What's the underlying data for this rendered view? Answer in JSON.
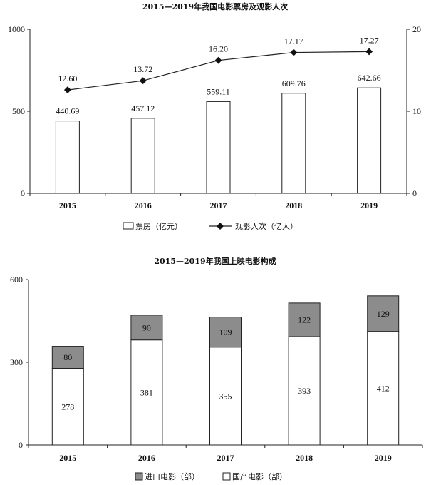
{
  "chart_data": [
    {
      "type": "bar",
      "title": "2015—2019年我国电影票房及观影人次",
      "categories": [
        "2015",
        "2016",
        "2017",
        "2018",
        "2019"
      ],
      "ylim": [
        0,
        1000
      ],
      "y2lim": [
        0,
        20
      ],
      "yticks": [
        "0",
        "500",
        "1000"
      ],
      "y2ticks": [
        "0",
        "10",
        "20"
      ],
      "series": [
        {
          "name": "票房（亿元）",
          "type": "bar",
          "axis": "left",
          "values": [
            440.69,
            457.12,
            559.11,
            609.76,
            642.66
          ],
          "labels": [
            "440.69",
            "457.12",
            "559.11",
            "609.76",
            "642.66"
          ]
        },
        {
          "name": "观影人次（亿人）",
          "type": "line",
          "axis": "right",
          "values": [
            12.6,
            13.72,
            16.2,
            17.17,
            17.27
          ],
          "labels": [
            "12.60",
            "13.72",
            "16.20",
            "17.17",
            "17.27"
          ]
        }
      ],
      "legend": "bottom"
    },
    {
      "type": "bar",
      "stacked": true,
      "title": "2015—2019年我国上映电影构成",
      "categories": [
        "2015",
        "2016",
        "2017",
        "2018",
        "2019"
      ],
      "ylim": [
        0,
        600
      ],
      "yticks": [
        "0",
        "300",
        "600"
      ],
      "series": [
        {
          "name": "国产电影（部）",
          "color": "#ffffff",
          "values": [
            278,
            381,
            355,
            393,
            412
          ],
          "labels": [
            "278",
            "381",
            "355",
            "393",
            "412"
          ]
        },
        {
          "name": "进口电影（部）",
          "color": "#8c8c8c",
          "values": [
            80,
            90,
            109,
            122,
            129
          ],
          "labels": [
            "80",
            "90",
            "109",
            "122",
            "129"
          ]
        }
      ],
      "legend_order": [
        "进口电影（部）",
        "国产电影（部）"
      ],
      "legend": "bottom"
    }
  ]
}
